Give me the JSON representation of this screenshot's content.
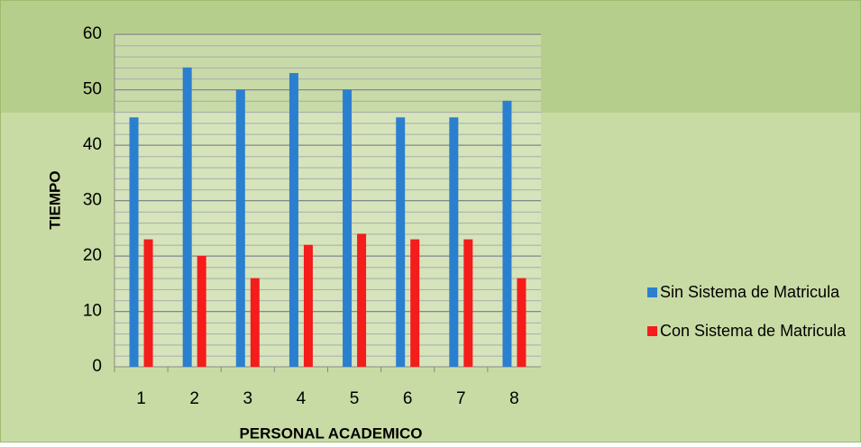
{
  "chart_data": {
    "type": "bar",
    "categories": [
      "1",
      "2",
      "3",
      "4",
      "5",
      "6",
      "7",
      "8"
    ],
    "series": [
      {
        "name": "Sin Sistema de Matricula",
        "color": "#2b7fcf",
        "values": [
          45,
          54,
          50,
          53,
          50,
          45,
          45,
          48
        ]
      },
      {
        "name": "Con Sistema de Matricula",
        "color": "#f51c1c",
        "values": [
          23,
          20,
          16,
          22,
          24,
          23,
          23,
          16
        ]
      }
    ],
    "ylim": [
      0,
      60
    ],
    "yticks": [
      0,
      10,
      20,
      30,
      40,
      50,
      60
    ],
    "grid": true,
    "xlabel": "PERSONAL ACADEMICO",
    "ylabel": "TIEMPO",
    "legend": "right"
  }
}
